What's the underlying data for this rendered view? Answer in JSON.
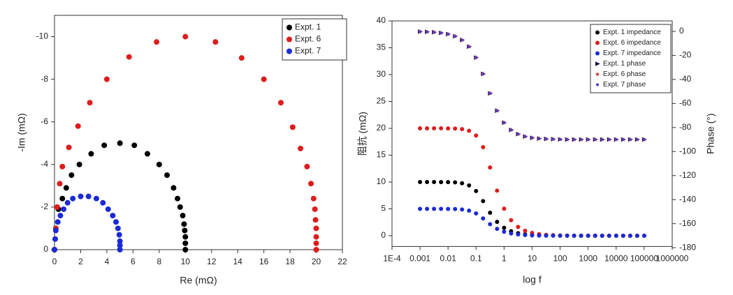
{
  "chart_data": [
    {
      "type": "scatter",
      "xlabel": "Re (mΩ)",
      "ylabel": "-Im (mΩ)",
      "xlim": [
        0,
        22
      ],
      "xticks": [
        0,
        2,
        4,
        6,
        8,
        10,
        12,
        14,
        16,
        18,
        20,
        22
      ],
      "ylim": [
        0,
        -11
      ],
      "yticks": [
        0,
        -2,
        -4,
        -6,
        -8,
        -10
      ],
      "legend": "upper right",
      "series": [
        {
          "name": "Expt. 1",
          "color": "#000000",
          "marker": "circle",
          "x": [
            0,
            0.1,
            0.3,
            0.6,
            0.9,
            1.3,
            1.9,
            2.8,
            3.8,
            5,
            6.1,
            7.1,
            8.0,
            8.6,
            9.1,
            9.4,
            9.6,
            9.8,
            9.9,
            9.95,
            10,
            10,
            10
          ],
          "values": [
            0,
            -1,
            -1.9,
            -2.4,
            -2.9,
            -3.5,
            -4.0,
            -4.5,
            -4.9,
            -5,
            -4.9,
            -4.5,
            -4.0,
            -3.5,
            -2.9,
            -2.4,
            -2.0,
            -1.6,
            -1.2,
            -0.9,
            -0.6,
            -0.3,
            0
          ]
        },
        {
          "name": "Expt. 6",
          "color": "#dd1c1c",
          "marker": "circle",
          "x": [
            0,
            0.05,
            0.1,
            0.2,
            0.4,
            0.6,
            1.1,
            1.8,
            2.7,
            4.0,
            5.7,
            7.8,
            10,
            12.3,
            14.3,
            16,
            17.3,
            18.2,
            18.8,
            19.3,
            19.6,
            19.8,
            19.9,
            19.95,
            20,
            20,
            20,
            20
          ],
          "values": [
            0,
            -0.5,
            -1,
            -2,
            -3.1,
            -3.9,
            -4.8,
            -5.8,
            -6.9,
            -8.0,
            -9.05,
            -9.75,
            -10,
            -9.75,
            -9.0,
            -8.0,
            -6.9,
            -5.75,
            -4.75,
            -3.9,
            -3.1,
            -2.4,
            -1.9,
            -1.4,
            -1.0,
            -0.6,
            -0.3,
            0
          ]
        },
        {
          "name": "Expt. 7",
          "color": "#1a2bd6",
          "marker": "circle",
          "x": [
            0,
            0.05,
            0.1,
            0.25,
            0.45,
            0.7,
            1.0,
            1.4,
            2.0,
            2.6,
            3.2,
            3.7,
            4.1,
            4.45,
            4.7,
            4.85,
            4.95,
            5.0,
            5,
            5
          ],
          "values": [
            0,
            -0.5,
            -0.9,
            -1.3,
            -1.6,
            -1.9,
            -2.2,
            -2.4,
            -2.5,
            -2.5,
            -2.4,
            -2.2,
            -1.9,
            -1.6,
            -1.3,
            -1.0,
            -0.7,
            -0.4,
            -0.2,
            0
          ]
        }
      ]
    },
    {
      "type": "scatter",
      "xlabel": "log f",
      "ylabel": "阻抗 (mΩ)",
      "y2label": "Phase (°)",
      "xscale": "log",
      "xlim": [
        0.0001,
        1000000
      ],
      "xticks": [
        {
          "value": 0.0001,
          "label": "1E-4"
        },
        0.001,
        0.01,
        0.1,
        1,
        10,
        100,
        1000,
        10000,
        100000,
        1000000
      ],
      "ylim": [
        -2,
        40
      ],
      "yticks": [
        0,
        5,
        10,
        15,
        20,
        25,
        30,
        35,
        40
      ],
      "y2lim": [
        -179,
        8.7
      ],
      "y2ticks": [
        0,
        -20,
        -40,
        -60,
        -80,
        -100,
        -120,
        -140,
        -160,
        -180
      ],
      "legend": "upper right",
      "x": [
        0.001,
        0.00178,
        0.00316,
        0.00562,
        0.01,
        0.0178,
        0.0316,
        0.0562,
        0.1,
        0.178,
        0.316,
        0.562,
        1,
        1.78,
        3.16,
        5.62,
        10,
        17.8,
        31.6,
        56.2,
        100,
        178,
        316,
        562,
        1000,
        1780,
        3160,
        5620,
        10000,
        17800,
        31600,
        56200,
        100000
      ],
      "series": [
        {
          "name": "Expt. 1 impedance",
          "color": "#000000",
          "marker": "circle",
          "values": [
            10,
            10,
            10,
            9.99,
            9.98,
            9.93,
            9.78,
            9.36,
            8.32,
            6.44,
            4.28,
            2.58,
            1.48,
            0.84,
            0.47,
            0.27,
            0.15,
            0.08,
            0.05,
            0.03,
            0.01,
            0.01,
            0,
            0,
            0,
            0,
            0,
            0,
            0,
            0,
            0,
            0,
            0
          ]
        },
        {
          "name": "Expt. 6 impedance",
          "color": "#dd1c1c",
          "marker": "circle",
          "values": [
            20,
            20,
            20,
            20,
            19.99,
            19.95,
            19.85,
            19.55,
            18.66,
            16.5,
            12.71,
            8.4,
            5.03,
            2.89,
            1.64,
            0.92,
            0.52,
            0.29,
            0.16,
            0.09,
            0.05,
            0.03,
            0.02,
            0.01,
            0.01,
            0,
            0,
            0,
            0,
            0,
            0,
            0,
            0
          ]
        },
        {
          "name": "Expt. 7 impedance",
          "color": "#1a2bd6",
          "marker": "circle",
          "values": [
            5,
            5,
            5,
            5,
            4.99,
            4.97,
            4.89,
            4.68,
            4.16,
            3.22,
            2.14,
            1.29,
            0.74,
            0.42,
            0.24,
            0.13,
            0.07,
            0.04,
            0.02,
            0.01,
            0.01,
            0,
            0,
            0,
            0,
            0,
            0,
            0,
            0,
            0,
            0,
            0,
            0
          ]
        },
        {
          "name": "Expt. 1 phase",
          "color": "#1a1040",
          "marker": "triangle",
          "axis": "y2",
          "values": [
            -0.23,
            -0.41,
            -0.72,
            -1.29,
            -2.29,
            -4.07,
            -7.2,
            -12.7,
            -21.8,
            -35.4,
            -51.6,
            -66.0,
            -76.0,
            -82.0,
            -85.5,
            -87.5,
            -88.6,
            -89.2,
            -89.5,
            -89.7,
            -89.9,
            -90,
            -90,
            -90,
            -90,
            -90,
            -90,
            -90,
            -90,
            -90,
            -90,
            -90,
            -90
          ]
        },
        {
          "name": "Expt. 6 phase",
          "color": "#c43030",
          "marker": "star",
          "axis": "y2",
          "values": [
            -0.23,
            -0.41,
            -0.72,
            -1.29,
            -2.29,
            -4.07,
            -7.2,
            -12.7,
            -21.8,
            -35.4,
            -51.6,
            -66.0,
            -76.0,
            -82.0,
            -85.5,
            -87.5,
            -88.6,
            -89.2,
            -89.5,
            -89.7,
            -89.9,
            -90,
            -90,
            -90,
            -90,
            -90,
            -90,
            -90,
            -90,
            -90,
            -90,
            -90,
            -90
          ]
        },
        {
          "name": "Expt. 7 phase",
          "color": "#5a3cc0",
          "marker": "dot",
          "axis": "y2",
          "values": [
            -0.23,
            -0.41,
            -0.72,
            -1.29,
            -2.29,
            -4.07,
            -7.2,
            -12.7,
            -21.8,
            -35.4,
            -51.6,
            -66.0,
            -76.0,
            -82.0,
            -85.5,
            -87.5,
            -88.6,
            -89.2,
            -89.5,
            -89.7,
            -89.9,
            -90,
            -90,
            -90,
            -90,
            -90,
            -90,
            -90,
            -90,
            -90,
            -90,
            -90,
            -90
          ]
        }
      ]
    }
  ]
}
